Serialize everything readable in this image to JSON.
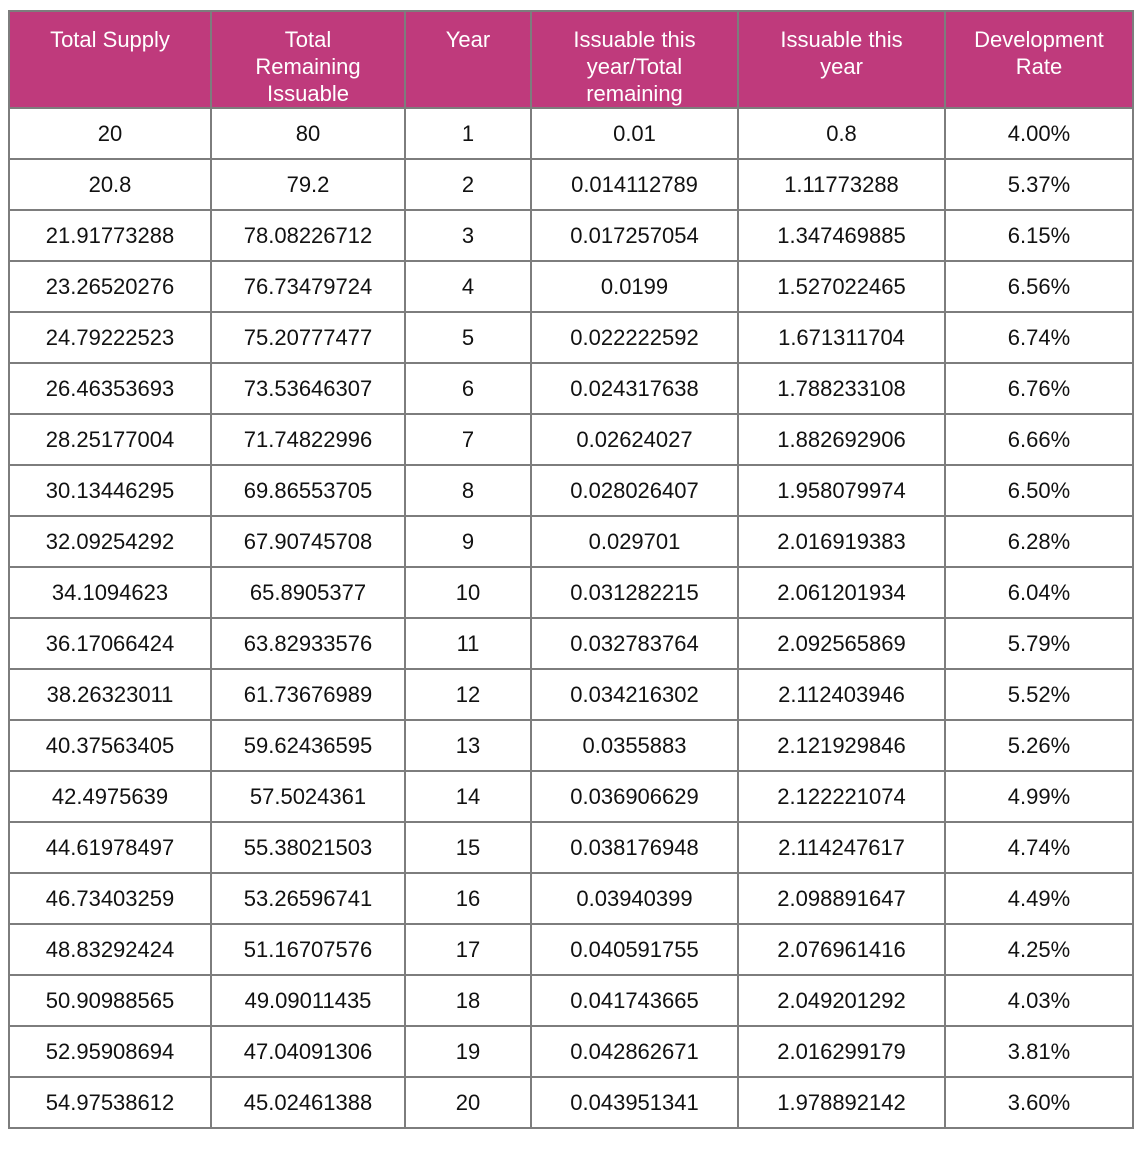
{
  "table": {
    "headers": [
      "Total Supply",
      "Total\nRemaining\nIssuable",
      "Year",
      "Issuable this\nyear/Total\nremaining",
      "Issuable this\nyear",
      "Development\nRate"
    ],
    "rows": [
      [
        "20",
        "80",
        "1",
        "0.01",
        "0.8",
        "4.00%"
      ],
      [
        "20.8",
        "79.2",
        "2",
        "0.014112789",
        "1.11773288",
        "5.37%"
      ],
      [
        "21.91773288",
        "78.08226712",
        "3",
        "0.017257054",
        "1.347469885",
        "6.15%"
      ],
      [
        "23.26520276",
        "76.73479724",
        "4",
        "0.0199",
        "1.527022465",
        "6.56%"
      ],
      [
        "24.79222523",
        "75.20777477",
        "5",
        "0.022222592",
        "1.671311704",
        "6.74%"
      ],
      [
        "26.46353693",
        "73.53646307",
        "6",
        "0.024317638",
        "1.788233108",
        "6.76%"
      ],
      [
        "28.25177004",
        "71.74822996",
        "7",
        "0.02624027",
        "1.882692906",
        "6.66%"
      ],
      [
        "30.13446295",
        "69.86553705",
        "8",
        "0.028026407",
        "1.958079974",
        "6.50%"
      ],
      [
        "32.09254292",
        "67.90745708",
        "9",
        "0.029701",
        "2.016919383",
        "6.28%"
      ],
      [
        "34.1094623",
        "65.8905377",
        "10",
        "0.031282215",
        "2.061201934",
        "6.04%"
      ],
      [
        "36.17066424",
        "63.82933576",
        "11",
        "0.032783764",
        "2.092565869",
        "5.79%"
      ],
      [
        "38.26323011",
        "61.73676989",
        "12",
        "0.034216302",
        "2.112403946",
        "5.52%"
      ],
      [
        "40.37563405",
        "59.62436595",
        "13",
        "0.0355883",
        "2.121929846",
        "5.26%"
      ],
      [
        "42.4975639",
        "57.5024361",
        "14",
        "0.036906629",
        "2.122221074",
        "4.99%"
      ],
      [
        "44.61978497",
        "55.38021503",
        "15",
        "0.038176948",
        "2.114247617",
        "4.74%"
      ],
      [
        "46.73403259",
        "53.26596741",
        "16",
        "0.03940399",
        "2.098891647",
        "4.49%"
      ],
      [
        "48.83292424",
        "51.16707576",
        "17",
        "0.040591755",
        "2.076961416",
        "4.25%"
      ],
      [
        "50.90988565",
        "49.09011435",
        "18",
        "0.041743665",
        "2.049201292",
        "4.03%"
      ],
      [
        "52.95908694",
        "47.04091306",
        "19",
        "0.042862671",
        "2.016299179",
        "3.81%"
      ],
      [
        "54.97538612",
        "45.02461388",
        "20",
        "0.043951341",
        "1.978892142",
        "3.60%"
      ]
    ]
  },
  "colors": {
    "header_bg": "#bf3a7c",
    "header_text": "#ffffff",
    "border": "#7d7d7d",
    "cell_text": "#111111"
  }
}
